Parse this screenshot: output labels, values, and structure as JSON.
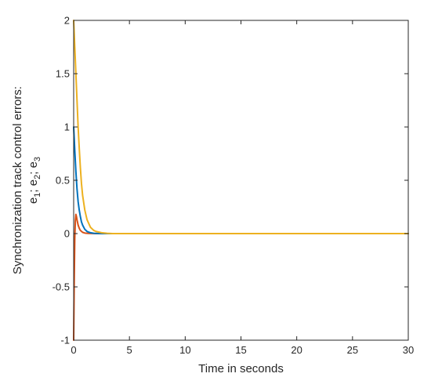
{
  "chart_data": {
    "type": "line",
    "title": "",
    "xlabel": "Time in seconds",
    "ylabel_line1": "Synchronization track control errors:",
    "ylabel_line2_parts": [
      "e",
      "1",
      "; e",
      "2",
      "; e",
      "3"
    ],
    "xlim": [
      0,
      30
    ],
    "ylim": [
      -1,
      2
    ],
    "xticks": [
      0,
      5,
      10,
      15,
      20,
      25,
      30
    ],
    "xtick_labels": [
      "0",
      "5",
      "10",
      "15",
      "20",
      "25",
      "30"
    ],
    "yticks": [
      -1,
      -0.5,
      0,
      0.5,
      1,
      1.5,
      2
    ],
    "ytick_labels": [
      "-1",
      "-0.5",
      "0",
      "0.5",
      "1",
      "1.5",
      "2"
    ],
    "grid": false,
    "legend": "none",
    "series": [
      {
        "color": "#D95319",
        "x": [
          0,
          0.05,
          0.1,
          0.15,
          0.2,
          0.25,
          0.3,
          0.4,
          0.5,
          0.6,
          0.8,
          1.0,
          1.3,
          1.6,
          2.0,
          3.0,
          30
        ],
        "y": [
          -1.0,
          -0.45,
          -0.05,
          0.12,
          0.18,
          0.16,
          0.13,
          0.08,
          0.05,
          0.03,
          0.012,
          0.005,
          0.002,
          0.001,
          0.0,
          0.0,
          0.0
        ]
      },
      {
        "color": "#0072BD",
        "x": [
          0,
          0.1,
          0.2,
          0.3,
          0.4,
          0.5,
          0.6,
          0.7,
          0.8,
          1.0,
          1.2,
          1.5,
          1.8,
          2.2,
          3.0,
          30
        ],
        "y": [
          1.0,
          0.78,
          0.58,
          0.42,
          0.3,
          0.22,
          0.16,
          0.11,
          0.08,
          0.04,
          0.02,
          0.008,
          0.003,
          0.001,
          0.0,
          0.0
        ]
      },
      {
        "color": "#EDB120",
        "x": [
          0,
          0.1,
          0.2,
          0.3,
          0.4,
          0.5,
          0.6,
          0.7,
          0.8,
          1.0,
          1.2,
          1.5,
          1.8,
          2.0,
          2.5,
          3.0,
          3.5,
          30
        ],
        "y": [
          2.0,
          1.75,
          1.5,
          1.25,
          1.0,
          0.8,
          0.62,
          0.47,
          0.36,
          0.22,
          0.13,
          0.06,
          0.03,
          0.02,
          0.008,
          0.003,
          0.0,
          0.0
        ]
      }
    ]
  }
}
